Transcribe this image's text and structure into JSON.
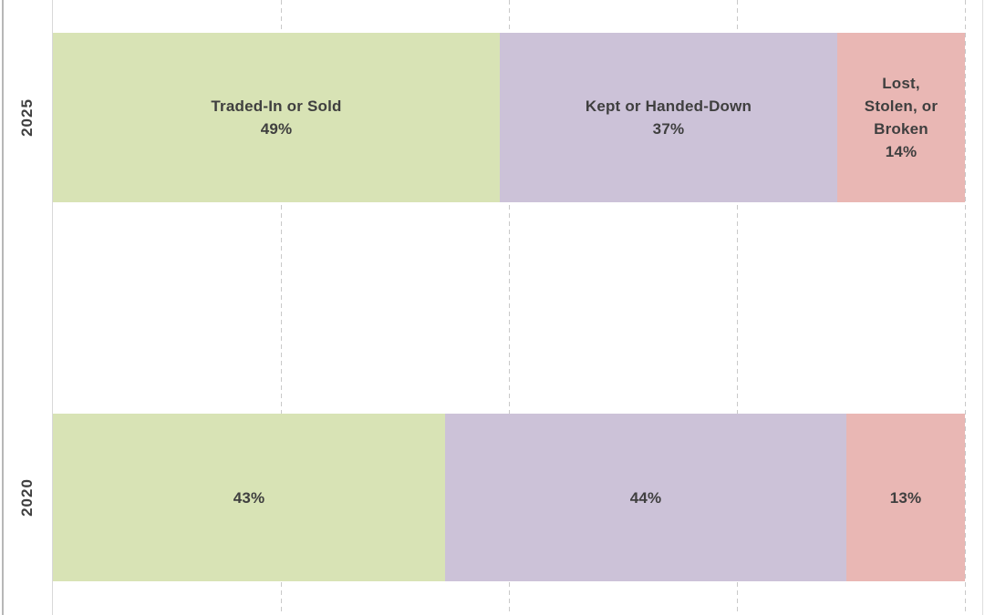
{
  "chart_data": {
    "type": "bar",
    "subtype": "horizontal-stacked-100pct",
    "title": "",
    "xlabel": "",
    "ylabel": "",
    "categories": [
      "2025",
      "2020"
    ],
    "series": [
      {
        "name": "Traded-In or Sold",
        "color": "#d8e3b5",
        "values": [
          49,
          43
        ]
      },
      {
        "name": "Kept or Handed-Down",
        "color": "#ccc2d8",
        "values": [
          37,
          44
        ]
      },
      {
        "name": "Lost, Stolen, or Broken",
        "color": "#e9b7b4",
        "values": [
          14,
          13
        ]
      }
    ],
    "segment_label_lines": [
      [
        [
          "Traded-In or Sold",
          "49%"
        ],
        [
          "Kept or Handed-Down",
          "37%"
        ],
        [
          "Lost,",
          "Stolen, or",
          "Broken",
          "14%"
        ]
      ],
      [
        [
          "43%"
        ],
        [
          "44%"
        ],
        [
          "13%"
        ]
      ]
    ],
    "xlim": [
      0,
      100
    ],
    "gridline_percents": [
      25,
      50,
      75,
      100
    ],
    "grid_style": "dashed-vertical",
    "legend": "none",
    "colors": {
      "bar_label_text": "#3f3f3f",
      "axis_label_text": "#3f3f3f",
      "gridline": "#c9c9c9",
      "axis_line": "#d8d8d8",
      "frame_left": "#b7b7b7",
      "frame_right": "#dedede",
      "background": "#ffffff"
    }
  }
}
